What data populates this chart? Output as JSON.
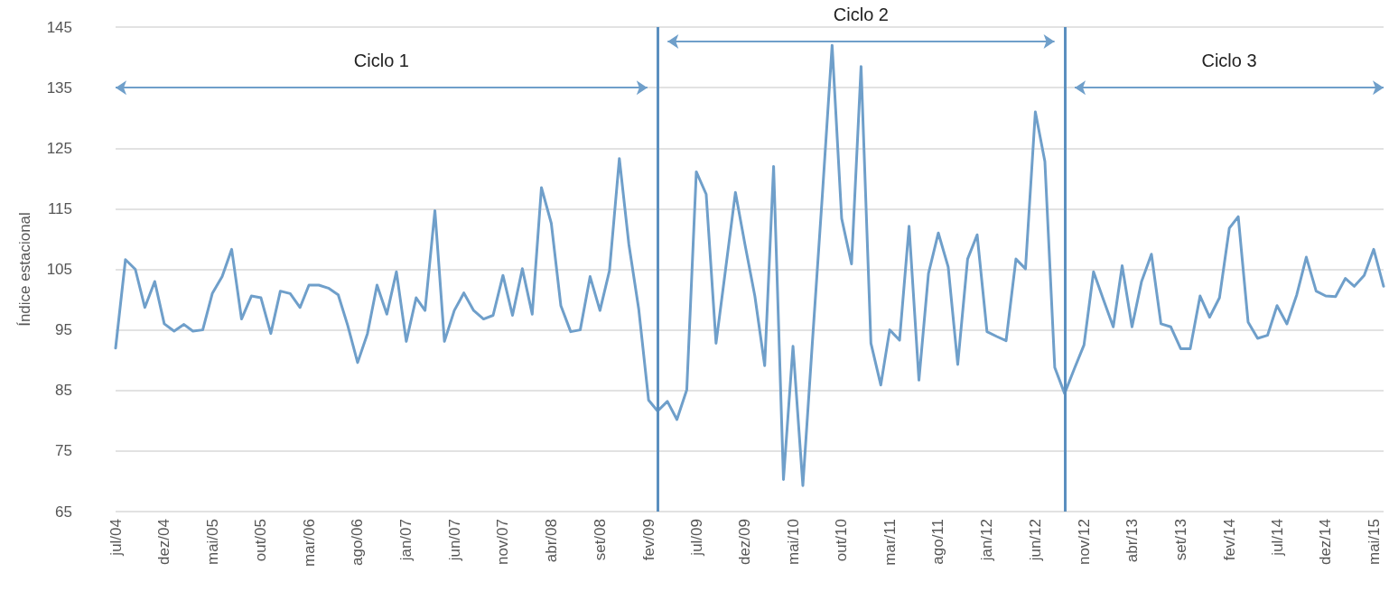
{
  "chart_data": {
    "type": "line",
    "ylabel": "Índice estacional",
    "x": [
      "2004-07",
      "2004-08",
      "2004-09",
      "2004-10",
      "2004-11",
      "2004-12",
      "2005-01",
      "2005-02",
      "2005-03",
      "2005-04",
      "2005-05",
      "2005-06",
      "2005-07",
      "2005-08",
      "2005-09",
      "2005-10",
      "2005-11",
      "2005-12",
      "2006-01",
      "2006-02",
      "2006-03",
      "2006-04",
      "2006-05",
      "2006-06",
      "2006-07",
      "2006-08",
      "2006-09",
      "2006-10",
      "2006-11",
      "2006-12",
      "2007-01",
      "2007-02",
      "2007-03",
      "2007-04",
      "2007-05",
      "2007-06",
      "2007-07",
      "2007-08",
      "2007-09",
      "2007-10",
      "2007-11",
      "2007-12",
      "2008-01",
      "2008-02",
      "2008-03",
      "2008-04",
      "2008-05",
      "2008-06",
      "2008-07",
      "2008-08",
      "2008-09",
      "2008-10",
      "2008-11",
      "2008-12",
      "2009-01",
      "2009-02",
      "2009-03",
      "2009-04",
      "2009-05",
      "2009-06",
      "2009-07",
      "2009-08",
      "2009-09",
      "2009-10",
      "2009-11",
      "2009-12",
      "2010-01",
      "2010-02",
      "2010-03",
      "2010-04",
      "2010-05",
      "2010-06",
      "2010-07",
      "2010-08",
      "2010-09",
      "2010-10",
      "2010-11",
      "2010-12",
      "2011-01",
      "2011-02",
      "2011-03",
      "2011-04",
      "2011-05",
      "2011-06",
      "2011-07",
      "2011-08",
      "2011-09",
      "2011-10",
      "2011-11",
      "2011-12",
      "2012-01",
      "2012-02",
      "2012-03",
      "2012-04",
      "2012-05",
      "2012-06",
      "2012-07",
      "2012-08",
      "2012-09",
      "2012-10",
      "2012-11",
      "2012-12",
      "2013-01",
      "2013-02",
      "2013-03",
      "2013-04",
      "2013-05",
      "2013-06",
      "2013-07",
      "2013-08",
      "2013-09",
      "2013-10",
      "2013-11",
      "2013-12",
      "2014-01",
      "2014-02",
      "2014-03",
      "2014-04",
      "2014-05",
      "2014-06",
      "2014-07",
      "2014-08",
      "2014-09",
      "2014-10",
      "2014-11",
      "2014-12",
      "2015-01",
      "2015-02",
      "2015-03",
      "2015-04",
      "2015-05",
      "2015-06"
    ],
    "series": [
      {
        "color": "#6f9fca",
        "values": [
          92,
          106.6,
          105,
          98.7,
          103,
          96,
          94.8,
          95.9,
          94.8,
          95,
          101,
          103.8,
          108.3,
          96.8,
          100.6,
          100.3,
          94.4,
          101.4,
          101,
          98.7,
          102.4,
          102.4,
          101.9,
          100.8,
          95.7,
          89.6,
          94.4,
          102.4,
          97.6,
          104.6,
          93.1,
          100.3,
          98.2,
          114.7,
          93.1,
          98.2,
          101.1,
          98.2,
          96.8,
          97.4,
          104,
          97.4,
          105.1,
          97.6,
          118.5,
          112.6,
          99,
          94.7,
          95,
          103.8,
          98.2,
          104.8,
          123.3,
          109.1,
          98.4,
          83.4,
          81.6,
          83.2,
          80.2,
          85.1,
          121.1,
          117.4,
          92.8,
          105,
          117.7,
          109.1,
          100.6,
          89.1,
          122,
          70.3,
          92.3,
          69.3,
          93,
          117,
          142,
          113.4,
          105.9,
          138.5,
          92.8,
          85.9,
          95,
          93.3,
          112.1,
          86.7,
          104.3,
          111,
          105.4,
          89.3,
          106.7,
          110.7,
          94.7,
          93.9,
          93.2,
          106.7,
          105.1,
          131,
          122.8,
          88.8,
          84.5,
          88.5,
          92.5,
          104.6,
          100,
          95.5,
          105.6,
          95.5,
          103,
          107.5,
          96,
          95.5,
          91.9,
          91.9,
          100.6,
          97.1,
          100.3,
          111.8,
          113.7,
          96.3,
          93.6,
          94.1,
          99,
          96,
          100.8,
          107,
          101.4,
          100.6,
          100.5,
          103.5,
          102.2,
          104,
          108.3,
          102.2
        ]
      }
    ],
    "xlim": [
      "2004-07",
      "2015-06"
    ],
    "xticks": [
      {
        "value": "2004-07",
        "label": "jul/04"
      },
      {
        "value": "2004-12",
        "label": "dez/04"
      },
      {
        "value": "2005-05",
        "label": "mai/05"
      },
      {
        "value": "2005-10",
        "label": "out/05"
      },
      {
        "value": "2006-03",
        "label": "mar/06"
      },
      {
        "value": "2006-08",
        "label": "ago/06"
      },
      {
        "value": "2007-01",
        "label": "jan/07"
      },
      {
        "value": "2007-06",
        "label": "jun/07"
      },
      {
        "value": "2007-11",
        "label": "nov/07"
      },
      {
        "value": "2008-04",
        "label": "abr/08"
      },
      {
        "value": "2008-09",
        "label": "set/08"
      },
      {
        "value": "2009-02",
        "label": "fev/09"
      },
      {
        "value": "2009-07",
        "label": "jul/09"
      },
      {
        "value": "2009-12",
        "label": "dez/09"
      },
      {
        "value": "2010-05",
        "label": "mai/10"
      },
      {
        "value": "2010-10",
        "label": "out/10"
      },
      {
        "value": "2011-03",
        "label": "mar/11"
      },
      {
        "value": "2011-08",
        "label": "ago/11"
      },
      {
        "value": "2012-01",
        "label": "jan/12"
      },
      {
        "value": "2012-06",
        "label": "jun/12"
      },
      {
        "value": "2012-11",
        "label": "nov/12"
      },
      {
        "value": "2013-04",
        "label": "abr/13"
      },
      {
        "value": "2013-09",
        "label": "set/13"
      },
      {
        "value": "2014-02",
        "label": "fev/14"
      },
      {
        "value": "2014-07",
        "label": "jul/14"
      },
      {
        "value": "2014-12",
        "label": "dez/14"
      },
      {
        "value": "2015-05",
        "label": "mai/15"
      }
    ],
    "ylim": [
      65,
      145
    ],
    "yticks": [
      65,
      75,
      85,
      95,
      105,
      115,
      125,
      135,
      145
    ],
    "grid": "y",
    "marker": "none",
    "line_style": "solid",
    "ref_lines": [
      {
        "axis": "x",
        "value": "2009-03",
        "color": "#5b8fbf"
      },
      {
        "axis": "x",
        "value": "2012-09",
        "color": "#5b8fbf"
      }
    ],
    "annotations": [
      "Ciclo 1",
      "Ciclo 2",
      "Ciclo 3"
    ]
  }
}
